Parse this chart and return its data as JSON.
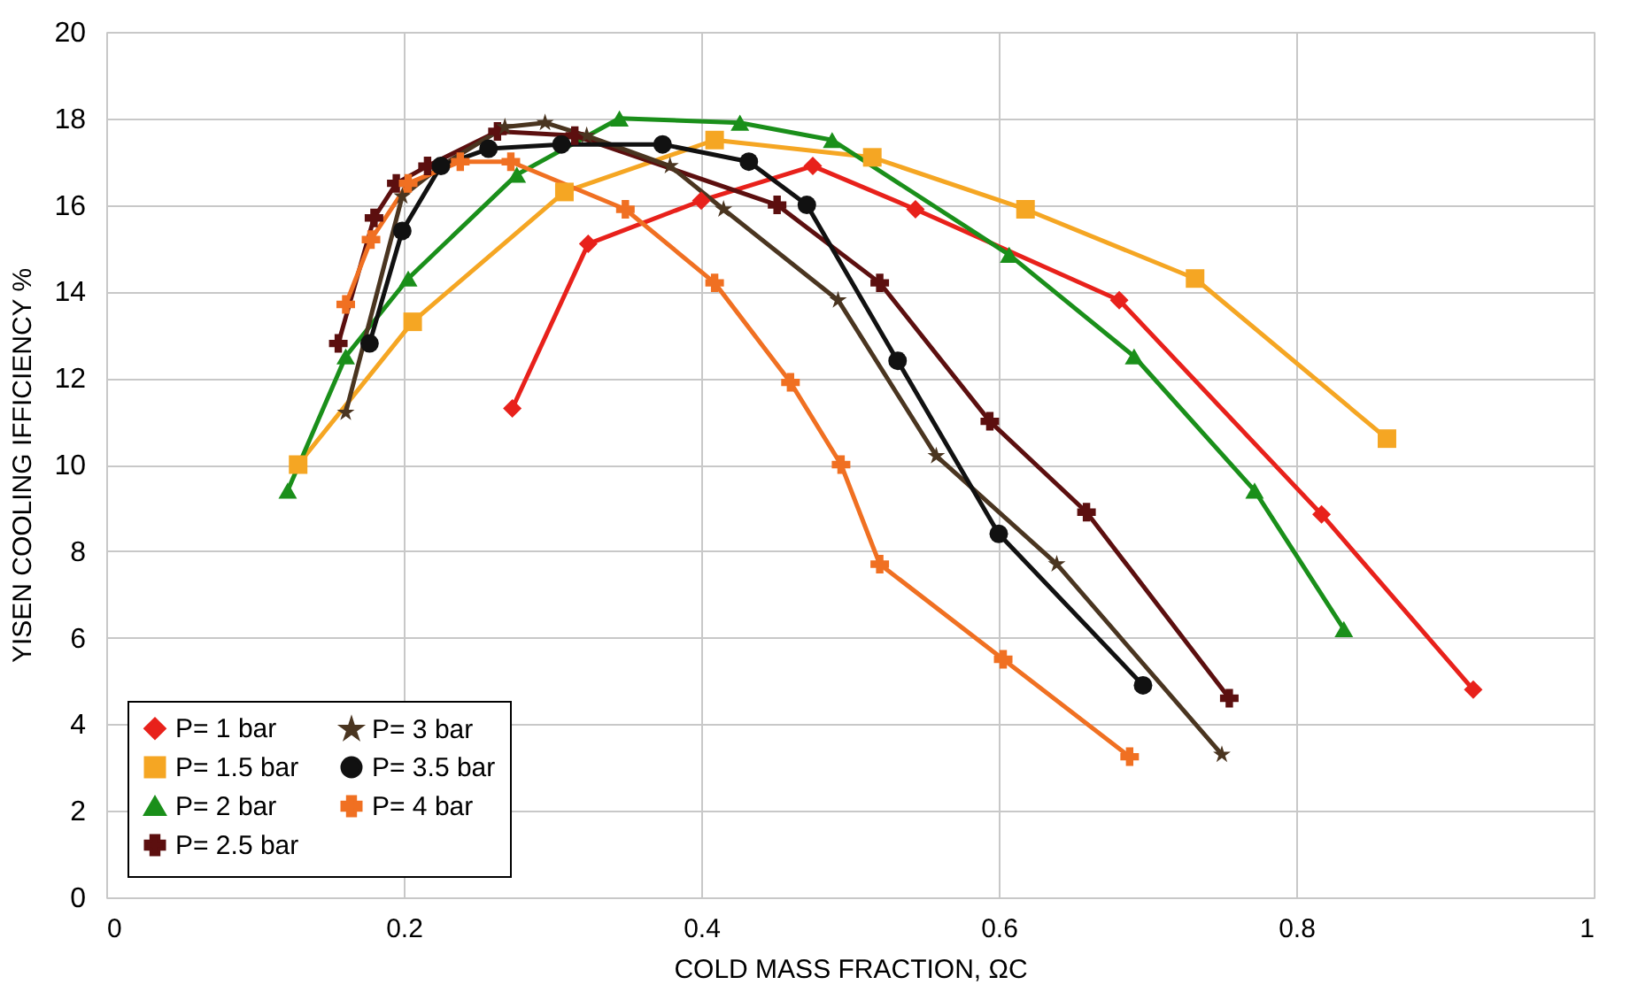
{
  "chart_data": {
    "type": "line",
    "xlabel": "COLD MASS FRACTION, ΩC",
    "ylabel": "YISEN COOLING IFFICIENCY %",
    "xlim": [
      0,
      1
    ],
    "xticks": [
      0,
      0.2,
      0.4,
      0.6,
      0.8,
      1
    ],
    "ylim": [
      0,
      20
    ],
    "yticks": [
      0,
      2,
      4,
      6,
      8,
      10,
      12,
      14,
      16,
      18,
      20
    ],
    "grid": true,
    "legend": "bottom left",
    "line_style": "solid",
    "series": [
      {
        "name": "P= 1 bar",
        "color": "#e8211b",
        "marker": "diamond",
        "x": [
          0.273,
          0.324,
          0.4,
          0.475,
          0.544,
          0.681,
          0.817,
          0.919
        ],
        "values": [
          11.3,
          15.1,
          16.1,
          16.9,
          15.9,
          13.8,
          8.85,
          4.8
        ]
      },
      {
        "name": "P= 1.5 bar",
        "color": "#f5a623",
        "marker": "square",
        "x": [
          0.129,
          0.206,
          0.308,
          0.409,
          0.515,
          0.618,
          0.732,
          0.861
        ],
        "values": [
          10.0,
          13.3,
          16.3,
          17.5,
          17.1,
          15.9,
          14.3,
          10.6
        ]
      },
      {
        "name": "P= 2 bar",
        "color": "#1a8f1a",
        "marker": "triangle",
        "x": [
          0.122,
          0.161,
          0.203,
          0.276,
          0.345,
          0.426,
          0.488,
          0.607,
          0.691,
          0.772,
          0.832
        ],
        "values": [
          9.4,
          12.5,
          14.3,
          16.7,
          18.0,
          17.9,
          17.5,
          14.85,
          12.5,
          9.4,
          6.2
        ]
      },
      {
        "name": "P= 2.5 bar",
        "color": "#5c0f0f",
        "marker": "cross",
        "x": [
          0.156,
          0.18,
          0.195,
          0.216,
          0.263,
          0.315,
          0.374,
          0.451,
          0.52,
          0.594,
          0.659,
          0.755
        ],
        "values": [
          12.8,
          15.7,
          16.5,
          16.9,
          17.7,
          17.6,
          null,
          16.0,
          14.2,
          11.0,
          8.9,
          4.6
        ]
      },
      {
        "name": "P= 3  bar",
        "color": "#4a3520",
        "marker": "star",
        "x": [
          0.161,
          0.199,
          0.225,
          0.268,
          0.295,
          0.323,
          0.379,
          0.415,
          0.492,
          0.558,
          0.639,
          0.75
        ],
        "values": [
          11.2,
          16.2,
          16.9,
          17.8,
          17.9,
          17.6,
          16.9,
          15.9,
          13.8,
          10.2,
          7.7,
          3.3
        ]
      },
      {
        "name": "P= 3.5 bar",
        "color": "#111111",
        "marker": "circle",
        "x": [
          0.177,
          0.199,
          0.225,
          0.257,
          0.306,
          0.374,
          0.432,
          0.471,
          0.532,
          0.6,
          0.697
        ],
        "values": [
          12.8,
          15.4,
          16.9,
          17.3,
          17.4,
          17.4,
          17.0,
          16.0,
          12.4,
          8.4,
          4.9
        ]
      },
      {
        "name": "P= 4 bar",
        "color": "#f07022",
        "marker": "cross",
        "x": [
          0.161,
          0.178,
          0.203,
          0.238,
          0.272,
          0.349,
          0.409,
          0.46,
          0.494,
          0.52,
          0.603,
          0.688
        ],
        "values": [
          13.7,
          15.2,
          16.5,
          17.0,
          17.0,
          15.9,
          14.2,
          11.9,
          10.0,
          7.7,
          5.5,
          3.25
        ]
      }
    ]
  }
}
